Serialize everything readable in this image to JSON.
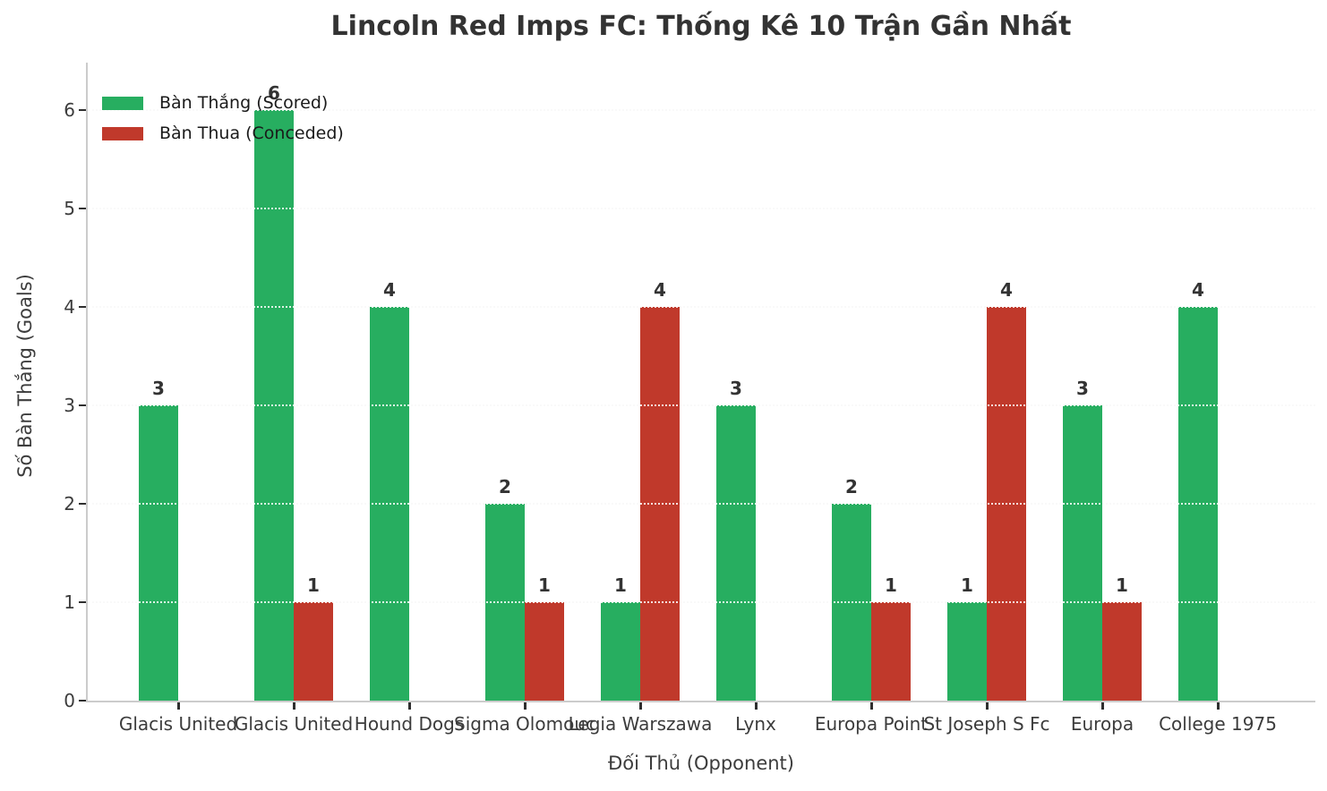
{
  "chart_data": {
    "type": "bar",
    "title": "Lincoln Red Imps FC: Thống Kê 10 Trận Gần Nhất",
    "xlabel": "Đối Thủ (Opponent)",
    "ylabel": "Số Bàn Thắng (Goals)",
    "categories": [
      "Glacis United",
      "Glacis United",
      "Hound Dogs",
      "Sigma Olomouc",
      "Legia Warszawa",
      "Lynx",
      "Europa Point",
      "St Joseph S Fc",
      "Europa",
      "College 1975"
    ],
    "series": [
      {
        "name": "Bàn Thắng (Scored)",
        "color": "#27ae60",
        "values": [
          3,
          6,
          4,
          2,
          1,
          3,
          2,
          1,
          3,
          4
        ]
      },
      {
        "name": "Bàn Thua (Conceded)",
        "color": "#c0392b",
        "values": [
          0,
          1,
          0,
          1,
          4,
          0,
          1,
          4,
          1,
          0
        ]
      }
    ],
    "ylim": [
      0,
      6
    ],
    "yticks": [
      0,
      1,
      2,
      3,
      4,
      5,
      6
    ],
    "grid": true,
    "grid_style": "dotted",
    "legend_position": "upper-left",
    "value_labels": "shown above each nonzero bar",
    "background": "#ffffff"
  }
}
